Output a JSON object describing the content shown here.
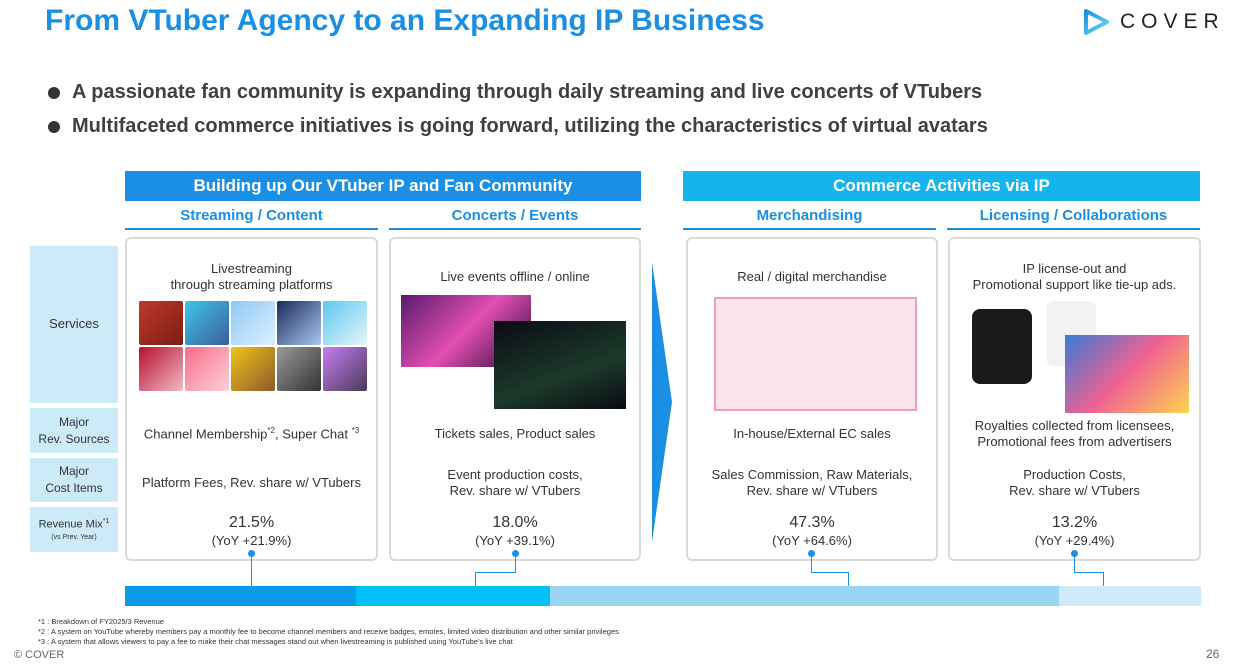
{
  "title": "From VTuber Agency to an Expanding IP Business",
  "logo": "COVER",
  "bullets": [
    "A passionate fan community is expanding through daily streaming and live concerts of VTubers",
    "Multifaceted commerce initiatives is going forward, utilizing the characteristics of virtual avatars"
  ],
  "sections": [
    "Building up Our VTuber IP and Fan Community",
    "Commerce Activities via IP"
  ],
  "row_labels": {
    "services": "Services",
    "rev1": "Major",
    "rev2": "Rev. Sources",
    "cost1": "Major",
    "cost2": "Cost Items",
    "mix": "Revenue Mix",
    "mix_sup": "*1",
    "mix_sub": "(vs Prev. Year)"
  },
  "columns": [
    {
      "name": "Streaming / Content",
      "service1": "Livestreaming",
      "service2": "through streaming platforms",
      "rev": "Channel Membership",
      "rev_sup1": "*2",
      "rev_mid": ", Super Chat ",
      "rev_sup2": "*3",
      "cost1": "Platform Fees, Rev. share w/ VTubers",
      "cost2": "",
      "pct": "21.5%",
      "yoy": "(YoY +21.9%)"
    },
    {
      "name": "Concerts / Events",
      "service1": "Live events offline / online",
      "service2": "",
      "rev": "Tickets sales, Product sales",
      "cost1": "Event production costs,",
      "cost2": "Rev. share w/ VTubers",
      "pct": "18.0%",
      "yoy": "(YoY +39.1%)"
    },
    {
      "name": "Merchandising",
      "service1": "Real / digital merchandise",
      "service2": "",
      "rev": "In-house/External EC sales",
      "cost1": "Sales Commission, Raw Materials,",
      "cost2": "Rev. share w/ VTubers",
      "pct": "47.3%",
      "yoy": "(YoY +64.6%)"
    },
    {
      "name": "Licensing / Collaborations",
      "service1": "IP license-out and",
      "service2": "Promotional support like tie-up ads.",
      "rev": "Royalties collected from licensees,",
      "rev2": "Promotional fees from advertisers",
      "cost1": "Production Costs,",
      "cost2": "Rev. share w/ VTubers",
      "pct": "13.2%",
      "yoy": "(YoY +29.4%)"
    }
  ],
  "mix_bar": [
    {
      "label": "Streaming / Content",
      "value": 21.5,
      "color": "#0a9be6"
    },
    {
      "label": "Concerts / Events",
      "value": 18.0,
      "color": "#00c0f6"
    },
    {
      "label": "Merchandising",
      "value": 47.3,
      "color": "#9ad6f4"
    },
    {
      "label": "Licensing / Collaborations",
      "value": 13.2,
      "color": "#cfeaf8"
    }
  ],
  "footnotes": [
    "*1 : Breakdown of FY2025/3 Revenue",
    "*2 : A system on YouTube whereby members pay a monthly fee to become channel members and receive badges, emotes, limited video distribution and other similar privileges",
    "*3 : A system that allows viewers to pay a fee to make their chat messages stand out when livestreaming is published using YouTube's live chat"
  ],
  "copyright": "© COVER",
  "page": "26"
}
